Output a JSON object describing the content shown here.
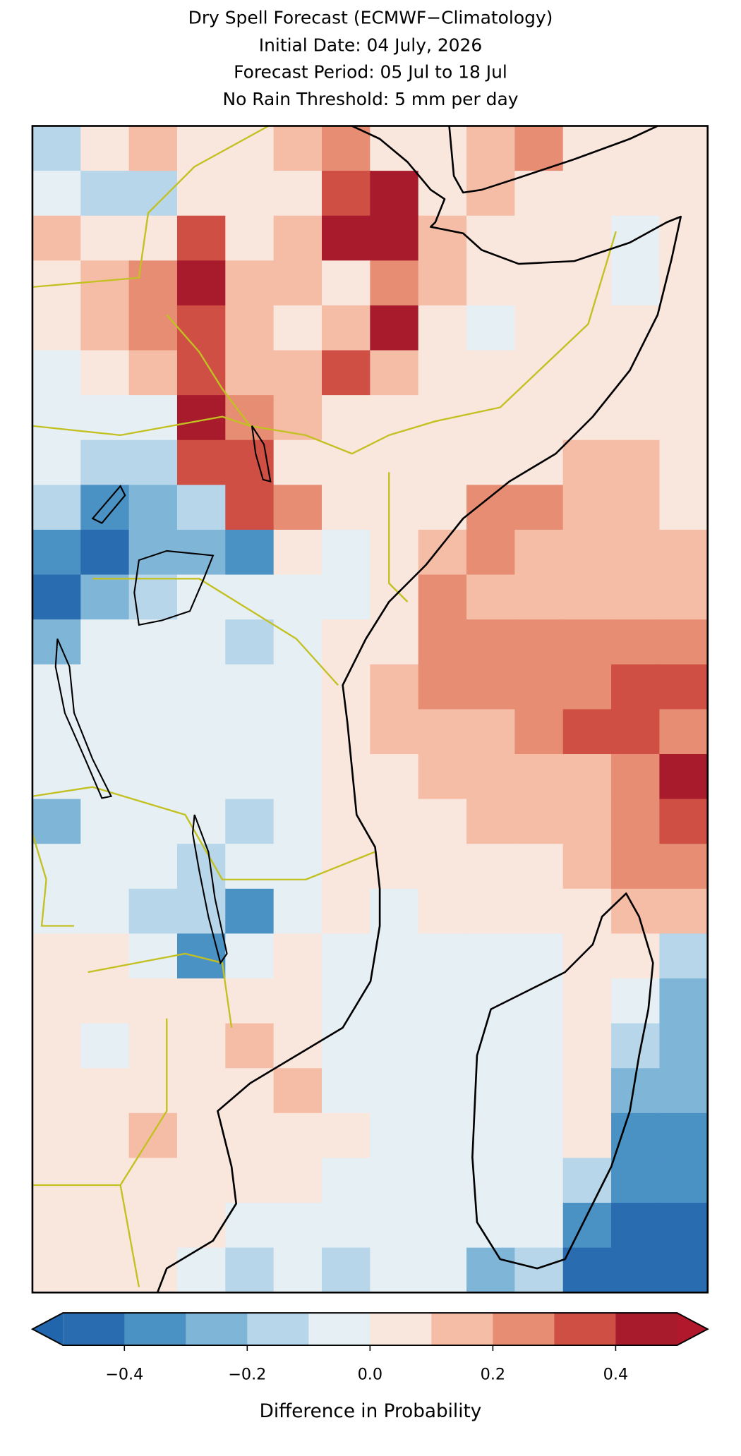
{
  "chart_data": {
    "type": "heatmap",
    "title": [
      "Dry Spell Forecast (ECMWF−Climatology)",
      "Initial Date: 04 July, 2026",
      "Forecast Period: 05 Jul to 18 Jul",
      "No Rain Threshold: 5 mm per day"
    ],
    "values": [
      [
        -0.15,
        0.05,
        0.15,
        0.05,
        0.05,
        0.15,
        0.25,
        0.05,
        0.05,
        0.15,
        0.25,
        0.05,
        0.05,
        0.05
      ],
      [
        -0.05,
        -0.15,
        -0.15,
        0.05,
        0.05,
        0.05,
        0.35,
        0.45,
        0.05,
        0.15,
        0.05,
        0.05,
        0.05,
        0.05
      ],
      [
        0.15,
        0.05,
        0.05,
        0.35,
        0.05,
        0.15,
        0.45,
        0.45,
        0.15,
        0.05,
        0.05,
        0.05,
        -0.05,
        0.05
      ],
      [
        0.05,
        0.15,
        0.25,
        0.45,
        0.15,
        0.15,
        0.05,
        0.25,
        0.15,
        0.05,
        0.05,
        0.05,
        -0.05,
        0.05
      ],
      [
        0.05,
        0.15,
        0.25,
        0.35,
        0.15,
        0.05,
        0.15,
        0.45,
        0.05,
        -0.05,
        0.05,
        0.05,
        0.05,
        0.05
      ],
      [
        -0.05,
        0.05,
        0.15,
        0.35,
        0.15,
        0.15,
        0.35,
        0.15,
        0.05,
        0.05,
        0.05,
        0.05,
        0.05,
        0.05
      ],
      [
        -0.05,
        -0.05,
        -0.05,
        0.45,
        0.25,
        0.15,
        0.05,
        0.05,
        0.05,
        0.05,
        0.05,
        0.05,
        0.05,
        0.05
      ],
      [
        -0.05,
        -0.15,
        -0.15,
        0.35,
        0.35,
        0.05,
        0.05,
        0.05,
        0.05,
        0.05,
        0.05,
        0.15,
        0.15,
        0.05
      ],
      [
        -0.15,
        -0.35,
        -0.25,
        -0.15,
        0.35,
        0.25,
        0.05,
        0.05,
        0.05,
        0.25,
        0.25,
        0.15,
        0.15,
        0.05
      ],
      [
        -0.35,
        -0.45,
        -0.25,
        -0.25,
        -0.35,
        0.05,
        -0.05,
        0.05,
        0.15,
        0.25,
        0.15,
        0.15,
        0.15,
        0.15
      ],
      [
        -0.45,
        -0.25,
        -0.15,
        -0.05,
        -0.05,
        -0.05,
        -0.05,
        0.05,
        0.25,
        0.15,
        0.15,
        0.15,
        0.15,
        0.15
      ],
      [
        -0.25,
        -0.05,
        -0.05,
        -0.05,
        -0.15,
        -0.05,
        0.05,
        0.05,
        0.25,
        0.25,
        0.25,
        0.25,
        0.25,
        0.25
      ],
      [
        -0.05,
        -0.05,
        -0.05,
        -0.05,
        -0.05,
        -0.05,
        0.05,
        0.15,
        0.25,
        0.25,
        0.25,
        0.25,
        0.35,
        0.35
      ],
      [
        -0.05,
        -0.05,
        -0.05,
        -0.05,
        -0.05,
        -0.05,
        0.05,
        0.15,
        0.15,
        0.15,
        0.25,
        0.35,
        0.35,
        0.25
      ],
      [
        -0.05,
        -0.05,
        -0.05,
        -0.05,
        -0.05,
        -0.05,
        0.05,
        0.05,
        0.15,
        0.15,
        0.15,
        0.15,
        0.25,
        0.45
      ],
      [
        -0.25,
        -0.05,
        -0.05,
        -0.05,
        -0.15,
        -0.05,
        0.05,
        0.05,
        0.05,
        0.15,
        0.15,
        0.15,
        0.25,
        0.35
      ],
      [
        -0.05,
        -0.05,
        -0.05,
        -0.15,
        -0.05,
        -0.05,
        0.05,
        0.05,
        0.05,
        0.05,
        0.05,
        0.15,
        0.25,
        0.25
      ],
      [
        -0.05,
        -0.05,
        -0.15,
        -0.15,
        -0.35,
        -0.05,
        0.05,
        -0.05,
        0.05,
        0.05,
        0.05,
        0.05,
        0.15,
        0.15
      ],
      [
        0.05,
        0.05,
        -0.05,
        -0.35,
        -0.05,
        0.05,
        -0.05,
        -0.05,
        -0.05,
        -0.05,
        -0.05,
        0.05,
        0.05,
        -0.15
      ],
      [
        0.05,
        0.05,
        0.05,
        0.05,
        0.05,
        0.05,
        -0.05,
        -0.05,
        -0.05,
        -0.05,
        -0.05,
        0.05,
        -0.05,
        -0.25
      ],
      [
        0.05,
        -0.05,
        0.05,
        0.05,
        0.15,
        0.05,
        -0.05,
        -0.05,
        -0.05,
        -0.05,
        -0.05,
        0.05,
        -0.15,
        -0.25
      ],
      [
        0.05,
        0.05,
        0.05,
        0.05,
        0.05,
        0.15,
        -0.05,
        -0.05,
        -0.05,
        -0.05,
        -0.05,
        0.05,
        -0.25,
        -0.25
      ],
      [
        0.05,
        0.05,
        0.15,
        0.05,
        0.05,
        0.05,
        0.05,
        -0.05,
        -0.05,
        -0.05,
        -0.05,
        0.05,
        -0.35,
        -0.35
      ],
      [
        0.05,
        0.05,
        0.05,
        0.05,
        0.05,
        0.05,
        -0.05,
        -0.05,
        -0.05,
        -0.05,
        -0.05,
        -0.15,
        -0.35,
        -0.35
      ],
      [
        0.05,
        0.05,
        0.05,
        0.05,
        -0.05,
        -0.05,
        -0.05,
        -0.05,
        -0.05,
        -0.05,
        -0.05,
        -0.35,
        -0.45,
        -0.45
      ],
      [
        0.05,
        0.05,
        0.05,
        -0.05,
        -0.15,
        -0.05,
        -0.15,
        -0.05,
        -0.05,
        -0.25,
        -0.15,
        -0.45,
        -0.45,
        -0.45
      ]
    ],
    "colorbar": {
      "clim": [
        -0.5,
        0.5
      ],
      "colors": [
        "#2a6cb0",
        "#4a91c4",
        "#7fb6d8",
        "#b7d6e9",
        "#e6eff4",
        "#f9e6dd",
        "#f6bda6",
        "#e68d73",
        "#cf4f45",
        "#a71b2c"
      ],
      "under_color": "#2166ac",
      "over_color": "#b2182b",
      "ticks": [
        {
          "value": -0.4,
          "label": "−0.4"
        },
        {
          "value": -0.2,
          "label": "−0.2"
        },
        {
          "value": 0,
          "label": "0.0"
        },
        0.2,
        0.4
      ],
      "label": "Difference in Probability"
    }
  }
}
